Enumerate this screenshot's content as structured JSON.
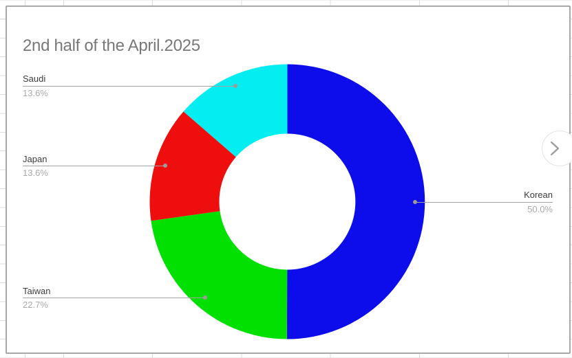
{
  "window": {
    "background": "spreadsheet-grid"
  },
  "card": {
    "title": "2nd half of the April.2025"
  },
  "nav": {
    "next_icon": "chevron-right"
  },
  "colors": {
    "card_border": "#a8a8a8",
    "grid_line": "#dcdcdc",
    "title_text": "#787878",
    "label_name_text": "#3d3d3d",
    "label_value_text": "#a9a9a9",
    "leader_line": "#a3a3a3"
  },
  "chart_data": {
    "type": "pie",
    "subtype": "donut",
    "title": "2nd half of the April.2025",
    "unit": "%",
    "direction": "clockwise",
    "start_angle_deg": 0,
    "hole_ratio": 0.495,
    "legend": "callout-labels-with-leader-lines",
    "slices": [
      {
        "label": "Korean",
        "value": 50.0,
        "display": "50.0%",
        "color": "#0d0deb",
        "callout_side": "right"
      },
      {
        "label": "Taiwan",
        "value": 22.7,
        "display": "22.7%",
        "color": "#02e002",
        "callout_side": "left"
      },
      {
        "label": "Japan",
        "value": 13.6,
        "display": "13.6%",
        "color": "#ef0e0e",
        "callout_side": "left"
      },
      {
        "label": "Saudi",
        "value": 13.6,
        "display": "13.6%",
        "color": "#04eef2",
        "callout_side": "left"
      }
    ]
  }
}
